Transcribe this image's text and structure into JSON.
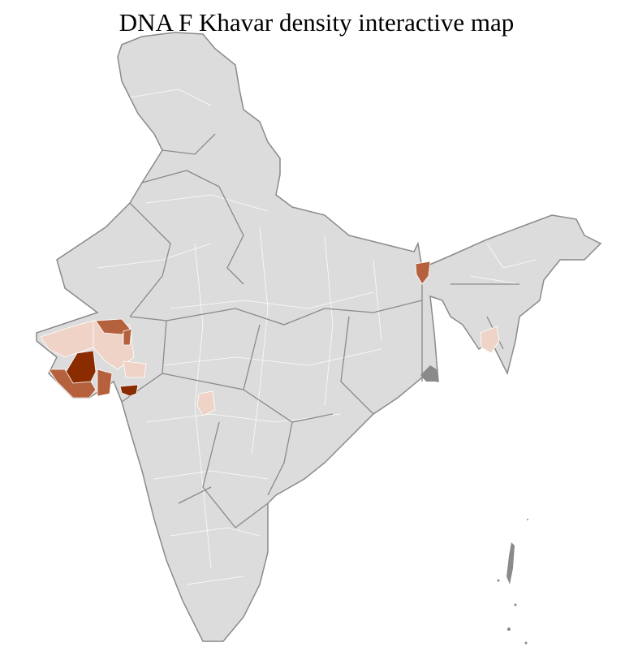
{
  "title": "DNA F Khavar density interactive map",
  "colors": {
    "no_data": "#dcdcdc",
    "state_border": "#8a8a8a",
    "district_border": "#ffffff",
    "low": "#efd3c7",
    "medium": "#b5613d",
    "high": "#8b2b00"
  },
  "highlighted_regions": [
    {
      "region": "Gujarat - Kutch",
      "level": "low"
    },
    {
      "region": "Gujarat - North",
      "level": "medium"
    },
    {
      "region": "Gujarat - Saurashtra central",
      "level": "high"
    },
    {
      "region": "Gujarat - Saurashtra south",
      "level": "medium"
    },
    {
      "region": "Gujarat - Surat area",
      "level": "high"
    },
    {
      "region": "Maharashtra - interior",
      "level": "low"
    },
    {
      "region": "West Bengal - north",
      "level": "medium"
    },
    {
      "region": "Northeast - Meghalaya/Tripura area",
      "level": "low"
    }
  ]
}
